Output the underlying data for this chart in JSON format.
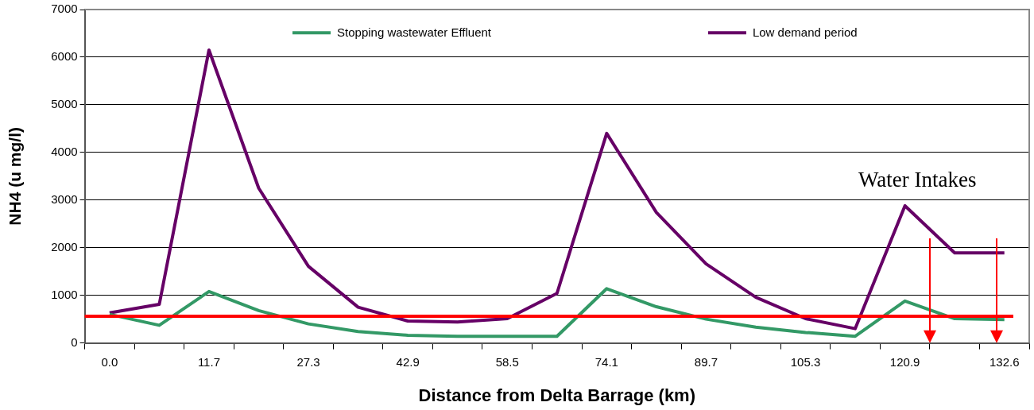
{
  "chart_data": {
    "type": "line",
    "xlabel": "Distance from Delta Barrage (km)",
    "ylabel": "NH4 (u mg/l)",
    "categories": [
      "0.0",
      null,
      "11.7",
      null,
      "27.3",
      null,
      "42.9",
      null,
      "58.5",
      null,
      "74.1",
      null,
      "89.7",
      null,
      "105.3",
      null,
      "120.9",
      null,
      "132.6"
    ],
    "series": [
      {
        "name": "Stopping wastewater Effluent",
        "color": "#339966",
        "values": [
          600,
          370,
          1080,
          680,
          400,
          240,
          160,
          140,
          140,
          140,
          1140,
          760,
          500,
          330,
          220,
          140,
          880,
          510,
          490
        ]
      },
      {
        "name": "Low demand period",
        "color": "#660066",
        "values": [
          630,
          810,
          6150,
          3250,
          1610,
          750,
          460,
          440,
          510,
          1040,
          4400,
          2740,
          1660,
          960,
          510,
          300,
          2880,
          1890,
          1890
        ]
      }
    ],
    "ylim": [
      0,
      7000
    ],
    "yticks": [
      0,
      1000,
      2000,
      3000,
      4000,
      5000,
      6000,
      7000
    ],
    "ref_lines": [
      {
        "axis": "y",
        "value": 560,
        "color": "#ff0000"
      }
    ],
    "annotations": [
      "Water Intakes"
    ],
    "grid": "y",
    "legend": "top",
    "marker": "none",
    "line_style": "solid"
  }
}
